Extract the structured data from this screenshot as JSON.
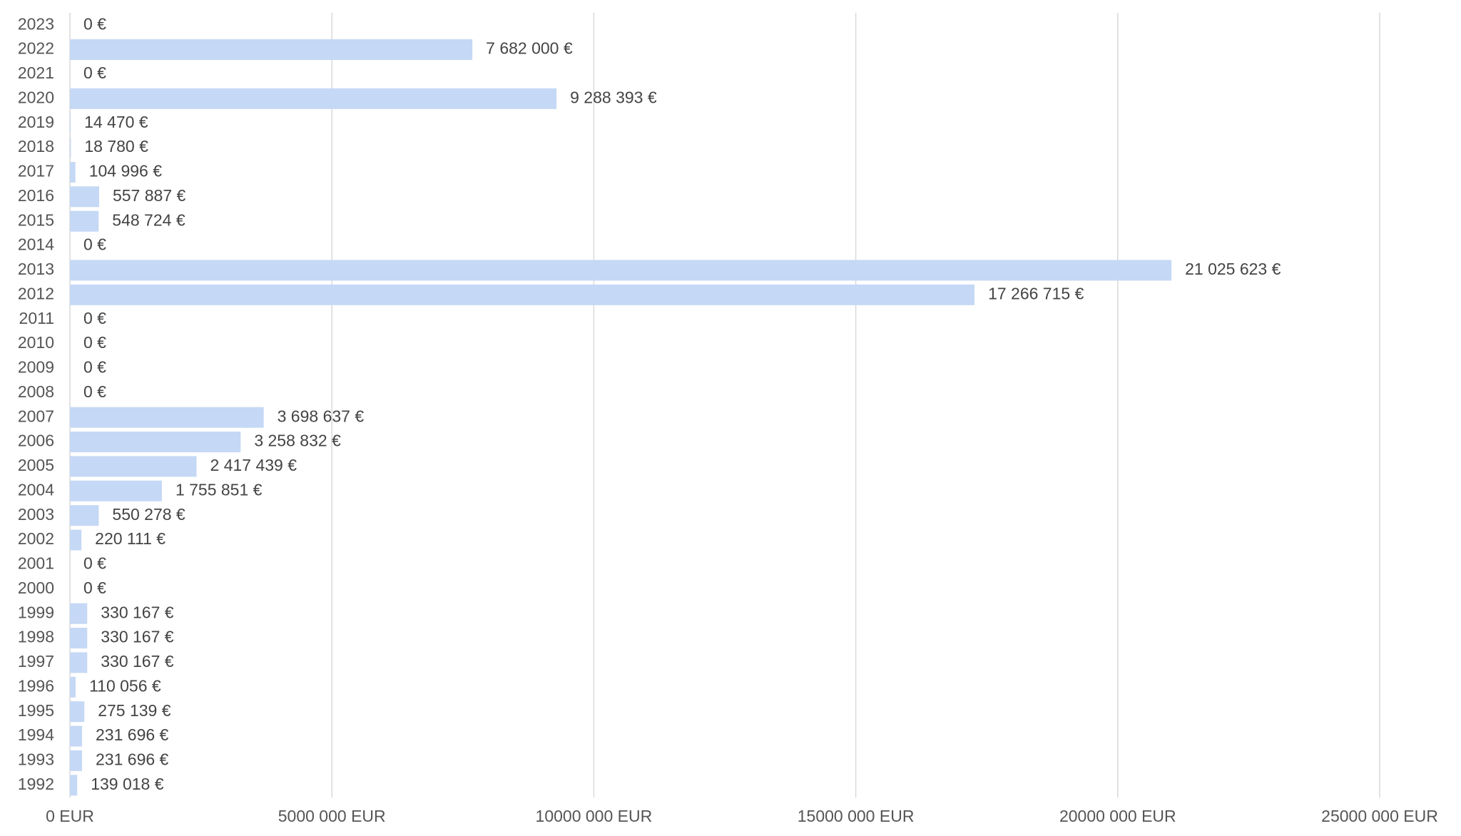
{
  "chart_data": {
    "type": "bar",
    "orientation": "horizontal",
    "categories": [
      "2023",
      "2022",
      "2021",
      "2020",
      "2019",
      "2018",
      "2017",
      "2016",
      "2015",
      "2014",
      "2013",
      "2012",
      "2011",
      "2010",
      "2009",
      "2008",
      "2007",
      "2006",
      "2005",
      "2004",
      "2003",
      "2002",
      "2001",
      "2000",
      "1999",
      "1998",
      "1997",
      "1996",
      "1995",
      "1994",
      "1993",
      "1992"
    ],
    "values": [
      0,
      7682000,
      0,
      9288393,
      14470,
      18780,
      104996,
      557887,
      548724,
      0,
      21025623,
      17266715,
      0,
      0,
      0,
      0,
      3698637,
      3258832,
      2417439,
      1755851,
      550278,
      220111,
      0,
      0,
      330167,
      330167,
      330167,
      110056,
      275139,
      231696,
      231696,
      139018
    ],
    "value_labels": [
      "0 €",
      "7 682 000 €",
      "0 €",
      "9 288 393 €",
      "14 470 €",
      "18 780 €",
      "104 996 €",
      "557 887 €",
      "548 724 €",
      "0 €",
      "21 025 623 €",
      "17 266 715 €",
      "0 €",
      "0 €",
      "0 €",
      "0 €",
      "3 698 637 €",
      "3 258 832 €",
      "2 417 439 €",
      "1 755 851 €",
      "550 278 €",
      "220 111 €",
      "0 €",
      "0 €",
      "330 167 €",
      "330 167 €",
      "330 167 €",
      "110 056 €",
      "275 139 €",
      "231 696 €",
      "231 696 €",
      "139 018 €"
    ],
    "color": "#c5d8f5",
    "xlim": [
      0,
      25000000
    ],
    "xticks": [
      {
        "value": 0,
        "label": "0 EUR"
      },
      {
        "value": 5000000,
        "label": "5000 000 EUR"
      },
      {
        "value": 10000000,
        "label": "10000 000 EUR"
      },
      {
        "value": 15000000,
        "label": "15000 000 EUR"
      },
      {
        "value": 20000000,
        "label": "20000 000 EUR"
      },
      {
        "value": 25000000,
        "label": "25000 000 EUR"
      }
    ],
    "grid": true
  }
}
